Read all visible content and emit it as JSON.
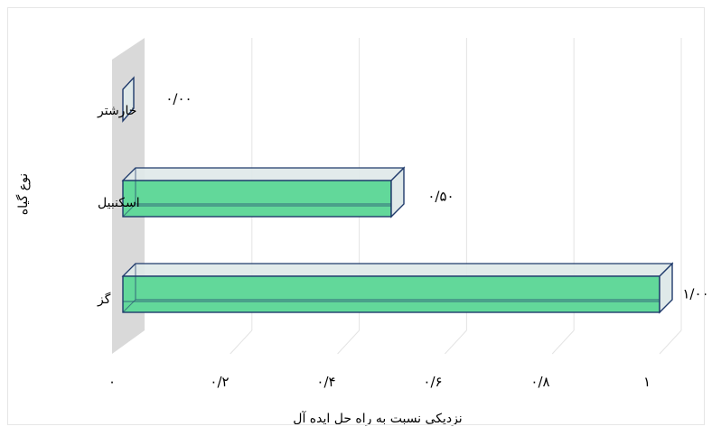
{
  "chart_data": {
    "type": "bar",
    "orientation": "horizontal",
    "style": "3d",
    "categories": [
      "خارشتر",
      "اسکنبیل",
      "گز"
    ],
    "values": [
      0.0,
      0.5,
      1.0
    ],
    "data_labels": [
      "۰/۰۰",
      "۰/۵۰",
      "۱/۰۰"
    ],
    "xlabel": "نزدیکی نسبت به راه حل ایده آل",
    "ylabel": "نوع گیاه",
    "xlim": [
      0,
      1
    ],
    "xticks": [
      0,
      0.2,
      0.4,
      0.6,
      0.8,
      1
    ],
    "xtick_labels": [
      "۰",
      "۰/۲",
      "۰/۴",
      "۰/۶",
      "۰/۸",
      "۱"
    ],
    "grid": true,
    "legend": "none",
    "colors": {
      "bar_fill": "#62d89a",
      "bar_outline": "#1f3a6b",
      "empty_face": "#dfe9e9",
      "wall": "#d9d9d9",
      "grid": "#e3e3e3"
    }
  }
}
